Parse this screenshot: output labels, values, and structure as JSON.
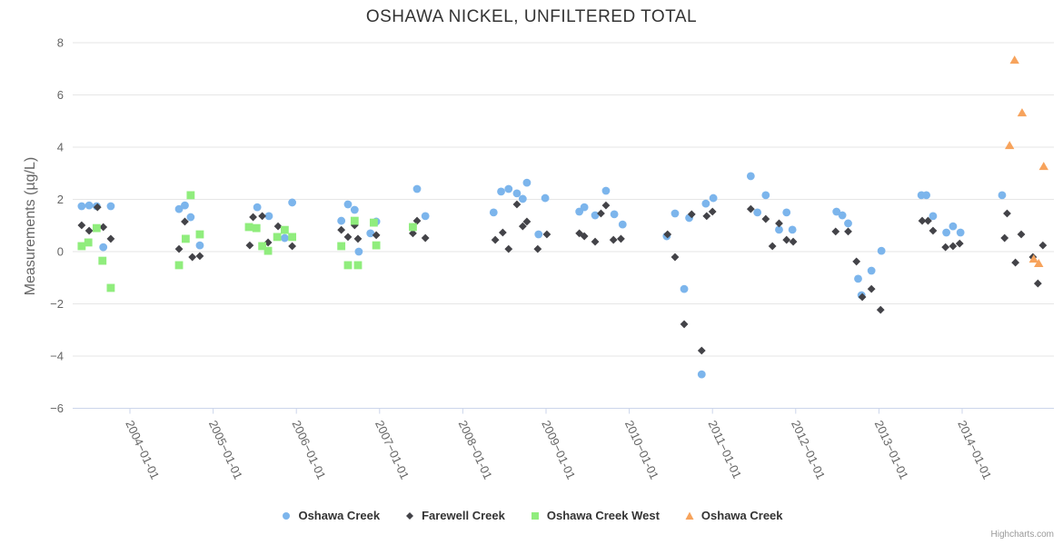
{
  "title": "OSHAWA NICKEL, UNFILTERED TOTAL",
  "credit": {
    "label": "Highcharts.com"
  },
  "y_axis": {
    "title": "Measurements (µg/L)",
    "ticks": [
      8,
      6,
      4,
      2,
      0,
      -2,
      -4,
      -6
    ]
  },
  "x_axis": {
    "categories": [
      "2004-01-01",
      "2005-01-01",
      "2006-01-01",
      "2007-01-01",
      "2008-01-01",
      "2009-01-01",
      "2010-01-01",
      "2011-01-01",
      "2012-01-01",
      "2013-01-01",
      "2014-01-01"
    ]
  },
  "legend": {
    "items": [
      {
        "label": "Oshawa Creek",
        "marker": "circle",
        "color": "#7cb5ec"
      },
      {
        "label": "Farewell Creek",
        "marker": "diamond",
        "color": "#434348"
      },
      {
        "label": "Oshawa Creek West",
        "marker": "square",
        "color": "#90ed7d"
      },
      {
        "label": "Oshawa Creek",
        "marker": "triangle",
        "color": "#f7a35c"
      }
    ]
  },
  "chart_data": {
    "type": "scatter",
    "title": "OSHAWA NICKEL, UNFILTERED TOTAL",
    "xlabel": "",
    "ylabel": "Measurements (µg/L)",
    "ylim": [
      -6,
      8
    ],
    "xlim": [
      2003.3,
      2015.1
    ],
    "grid": "horizontal",
    "legend_position": "bottom",
    "x_unit": "decimal_year",
    "series": [
      {
        "name": "Oshawa Creek",
        "marker": "circle",
        "color": "#7cb5ec",
        "points": [
          [
            2003.42,
            1.74
          ],
          [
            2003.51,
            1.77
          ],
          [
            2003.6,
            1.74
          ],
          [
            2003.77,
            1.74
          ],
          [
            2003.68,
            0.17
          ],
          [
            2004.59,
            1.63
          ],
          [
            2004.66,
            1.77
          ],
          [
            2004.73,
            1.32
          ],
          [
            2004.84,
            0.24
          ],
          [
            2005.53,
            1.7
          ],
          [
            2005.67,
            1.36
          ],
          [
            2005.95,
            1.88
          ],
          [
            2005.86,
            0.52
          ],
          [
            2006.54,
            1.18
          ],
          [
            2006.62,
            1.81
          ],
          [
            2006.7,
            1.6
          ],
          [
            2006.75,
            0.0
          ],
          [
            2006.89,
            0.7
          ],
          [
            2006.96,
            1.15
          ],
          [
            2007.45,
            2.4
          ],
          [
            2007.55,
            1.36
          ],
          [
            2008.37,
            1.5
          ],
          [
            2008.46,
            2.3
          ],
          [
            2008.55,
            2.4
          ],
          [
            2008.65,
            2.23
          ],
          [
            2008.72,
            2.02
          ],
          [
            2008.77,
            2.64
          ],
          [
            2008.91,
            0.66
          ],
          [
            2008.99,
            2.05
          ],
          [
            2009.4,
            1.53
          ],
          [
            2009.46,
            1.7
          ],
          [
            2009.59,
            1.39
          ],
          [
            2009.72,
            2.33
          ],
          [
            2009.82,
            1.43
          ],
          [
            2009.92,
            1.04
          ],
          [
            2010.45,
            0.59
          ],
          [
            2010.55,
            1.46
          ],
          [
            2010.66,
            -1.43
          ],
          [
            2010.72,
            1.29
          ],
          [
            2010.87,
            -4.7
          ],
          [
            2010.92,
            1.84
          ],
          [
            2011.01,
            2.05
          ],
          [
            2011.46,
            2.89
          ],
          [
            2011.54,
            1.5
          ],
          [
            2011.64,
            2.16
          ],
          [
            2011.8,
            0.84
          ],
          [
            2011.89,
            1.5
          ],
          [
            2011.96,
            0.84
          ],
          [
            2012.49,
            1.53
          ],
          [
            2012.56,
            1.39
          ],
          [
            2012.63,
            1.08
          ],
          [
            2012.75,
            -1.04
          ],
          [
            2012.79,
            -1.67
          ],
          [
            2012.91,
            -0.73
          ],
          [
            2013.03,
            0.03
          ],
          [
            2013.51,
            2.16
          ],
          [
            2013.57,
            2.16
          ],
          [
            2013.65,
            1.36
          ],
          [
            2013.81,
            0.73
          ],
          [
            2013.89,
            0.97
          ],
          [
            2013.98,
            0.73
          ],
          [
            2014.48,
            2.16
          ]
        ]
      },
      {
        "name": "Farewell Creek",
        "marker": "diamond",
        "color": "#434348",
        "points": [
          [
            2003.42,
            1.01
          ],
          [
            2003.51,
            0.8
          ],
          [
            2003.61,
            1.7
          ],
          [
            2003.68,
            0.94
          ],
          [
            2003.77,
            0.49
          ],
          [
            2004.59,
            0.1
          ],
          [
            2004.66,
            1.15
          ],
          [
            2004.75,
            -0.21
          ],
          [
            2004.84,
            -0.17
          ],
          [
            2005.44,
            0.24
          ],
          [
            2005.48,
            1.32
          ],
          [
            2005.59,
            1.36
          ],
          [
            2005.66,
            0.35
          ],
          [
            2005.78,
            0.97
          ],
          [
            2005.95,
            0.21
          ],
          [
            2006.54,
            0.83
          ],
          [
            2006.62,
            0.56
          ],
          [
            2006.7,
            1.01
          ],
          [
            2006.74,
            0.49
          ],
          [
            2006.96,
            0.63
          ],
          [
            2007.4,
            0.94
          ],
          [
            2007.4,
            0.7
          ],
          [
            2007.45,
            1.18
          ],
          [
            2007.55,
            0.52
          ],
          [
            2008.39,
            0.45
          ],
          [
            2008.48,
            0.73
          ],
          [
            2008.55,
            0.1
          ],
          [
            2008.65,
            1.81
          ],
          [
            2008.72,
            0.97
          ],
          [
            2008.77,
            1.15
          ],
          [
            2008.9,
            0.1
          ],
          [
            2009.01,
            0.66
          ],
          [
            2009.4,
            0.7
          ],
          [
            2009.46,
            0.59
          ],
          [
            2009.59,
            0.38
          ],
          [
            2009.66,
            1.46
          ],
          [
            2009.72,
            1.77
          ],
          [
            2009.81,
            0.45
          ],
          [
            2009.9,
            0.49
          ],
          [
            2010.46,
            0.66
          ],
          [
            2010.55,
            -0.21
          ],
          [
            2010.66,
            -2.78
          ],
          [
            2010.75,
            1.43
          ],
          [
            2010.87,
            -3.79
          ],
          [
            2010.93,
            1.36
          ],
          [
            2011.0,
            1.53
          ],
          [
            2011.46,
            1.63
          ],
          [
            2011.64,
            1.25
          ],
          [
            2011.72,
            0.21
          ],
          [
            2011.8,
            1.08
          ],
          [
            2011.89,
            0.45
          ],
          [
            2011.97,
            0.38
          ],
          [
            2012.48,
            0.77
          ],
          [
            2012.63,
            0.77
          ],
          [
            2012.73,
            -0.38
          ],
          [
            2012.8,
            -1.74
          ],
          [
            2012.91,
            -1.43
          ],
          [
            2013.02,
            -2.23
          ],
          [
            2013.52,
            1.18
          ],
          [
            2013.59,
            1.18
          ],
          [
            2013.65,
            0.8
          ],
          [
            2013.8,
            0.17
          ],
          [
            2013.89,
            0.21
          ],
          [
            2013.97,
            0.31
          ],
          [
            2014.51,
            0.52
          ],
          [
            2014.54,
            1.46
          ],
          [
            2014.64,
            -0.42
          ],
          [
            2014.71,
            0.66
          ],
          [
            2014.85,
            -0.21
          ],
          [
            2014.91,
            -1.22
          ],
          [
            2014.97,
            0.24
          ]
        ]
      },
      {
        "name": "Oshawa Creek West",
        "marker": "square",
        "color": "#90ed7d",
        "points": [
          [
            2003.42,
            0.21
          ],
          [
            2003.5,
            0.35
          ],
          [
            2003.6,
            0.9
          ],
          [
            2003.67,
            -0.35
          ],
          [
            2003.77,
            -1.39
          ],
          [
            2004.59,
            -0.52
          ],
          [
            2004.67,
            0.49
          ],
          [
            2004.73,
            2.16
          ],
          [
            2004.84,
            0.66
          ],
          [
            2005.43,
            0.94
          ],
          [
            2005.52,
            0.9
          ],
          [
            2005.59,
            0.21
          ],
          [
            2005.66,
            0.03
          ],
          [
            2005.77,
            0.56
          ],
          [
            2005.86,
            0.83
          ],
          [
            2005.95,
            0.56
          ],
          [
            2006.54,
            0.21
          ],
          [
            2006.62,
            -0.52
          ],
          [
            2006.7,
            1.18
          ],
          [
            2006.74,
            -0.52
          ],
          [
            2006.93,
            1.11
          ],
          [
            2006.96,
            0.24
          ],
          [
            2007.4,
            0.94
          ]
        ]
      },
      {
        "name": "Oshawa Creek",
        "marker": "triangle",
        "color": "#f7a35c",
        "points": [
          [
            2014.57,
            4.07
          ],
          [
            2014.63,
            7.34
          ],
          [
            2014.72,
            5.32
          ],
          [
            2014.86,
            -0.28
          ],
          [
            2014.92,
            -0.45
          ],
          [
            2014.98,
            3.27
          ]
        ]
      }
    ]
  },
  "colors": {
    "grid": "#e6e6e6",
    "axis_line": "#ccd6eb",
    "tick_label": "#666666",
    "title": "#333333"
  }
}
